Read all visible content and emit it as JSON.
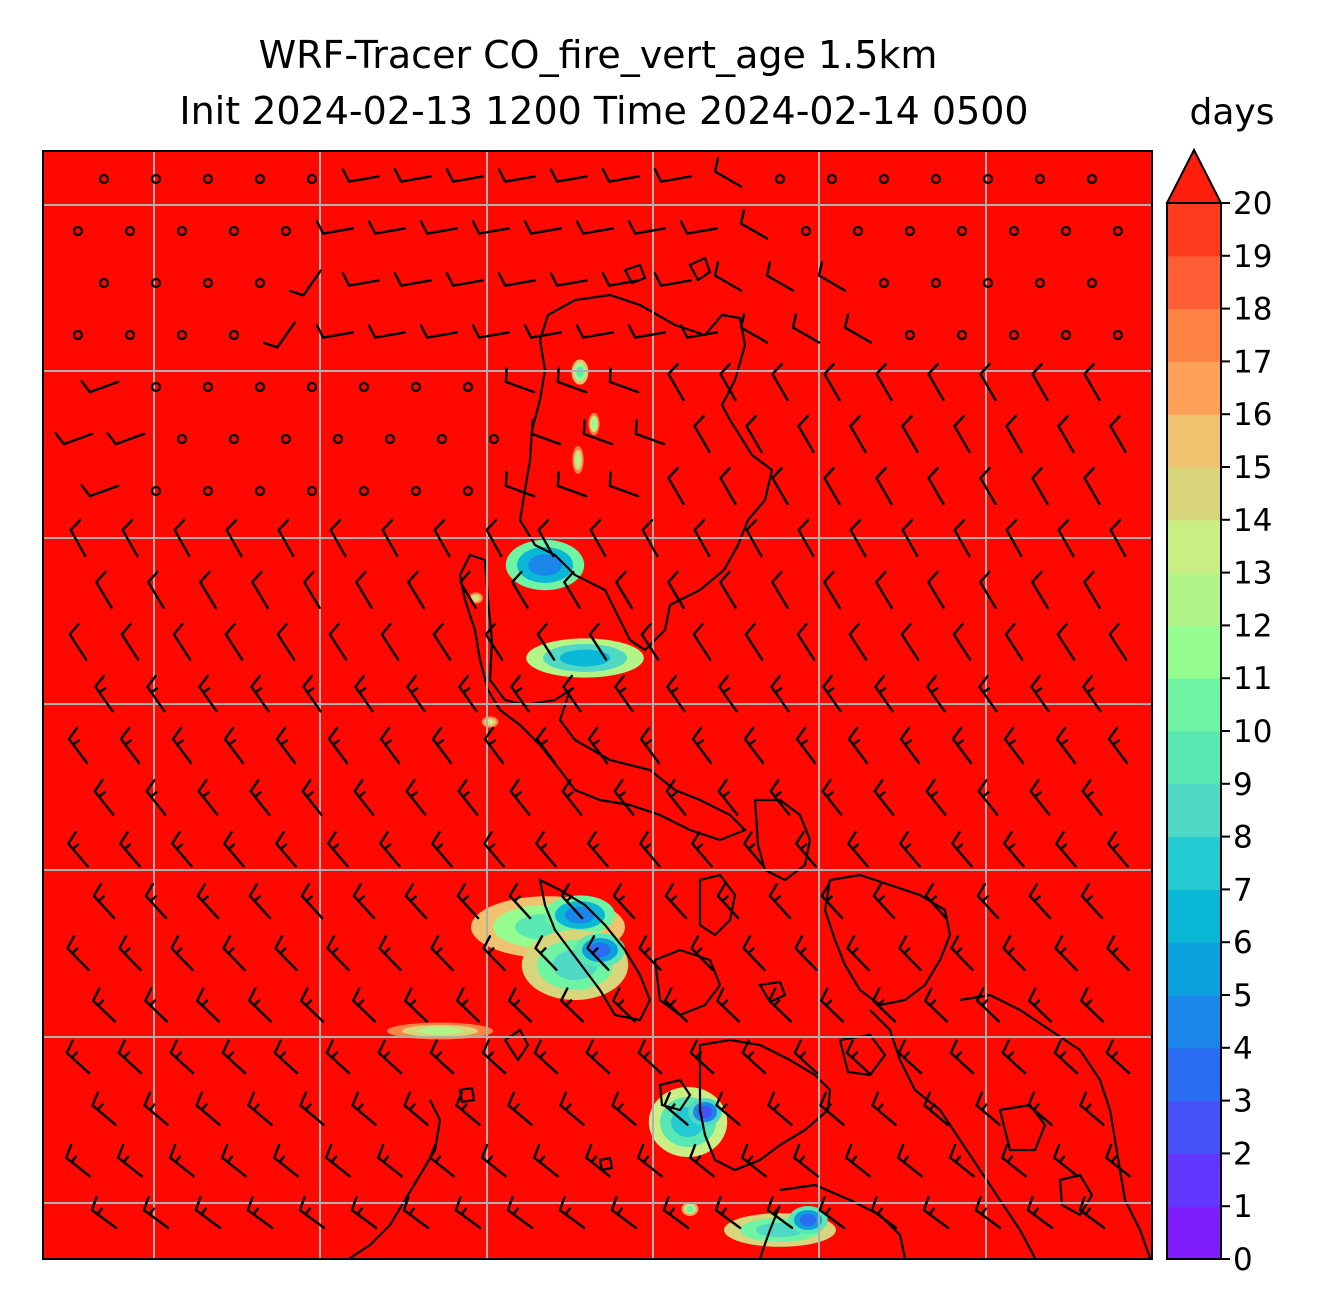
{
  "chart_data": {
    "type": "heatmap",
    "title_line1": "WRF-Tracer CO_fire_vert_age 1.5km",
    "title_line2": "Init 2024-02-13 1200 Time 2024-02-14 0500",
    "colorbar": {
      "units": "days",
      "min": 0,
      "max": 20,
      "extend": "max",
      "ticks": [
        "0",
        "1",
        "2",
        "3",
        "4",
        "5",
        "6",
        "7",
        "8",
        "9",
        "10",
        "11",
        "12",
        "13",
        "14",
        "15",
        "16",
        "17",
        "18",
        "19",
        "20"
      ],
      "colors": [
        "#7f1dff",
        "#6236fc",
        "#4452f8",
        "#2a6df2",
        "#1b86ea",
        "#0da0df",
        "#0bb7d6",
        "#25cbd2",
        "#4fd9c5",
        "#57e8b3",
        "#6ff4a3",
        "#95fd90",
        "#b3f489",
        "#c9ee84",
        "#d8d57c",
        "#f0c270",
        "#fea25a",
        "#ff8343",
        "#ff5d33",
        "#ff3b1e",
        "#ff1d0c"
      ]
    },
    "background_value_color": "#ff0800",
    "gridlines": "on",
    "wind_barbs": "on",
    "coastlines": "on"
  }
}
